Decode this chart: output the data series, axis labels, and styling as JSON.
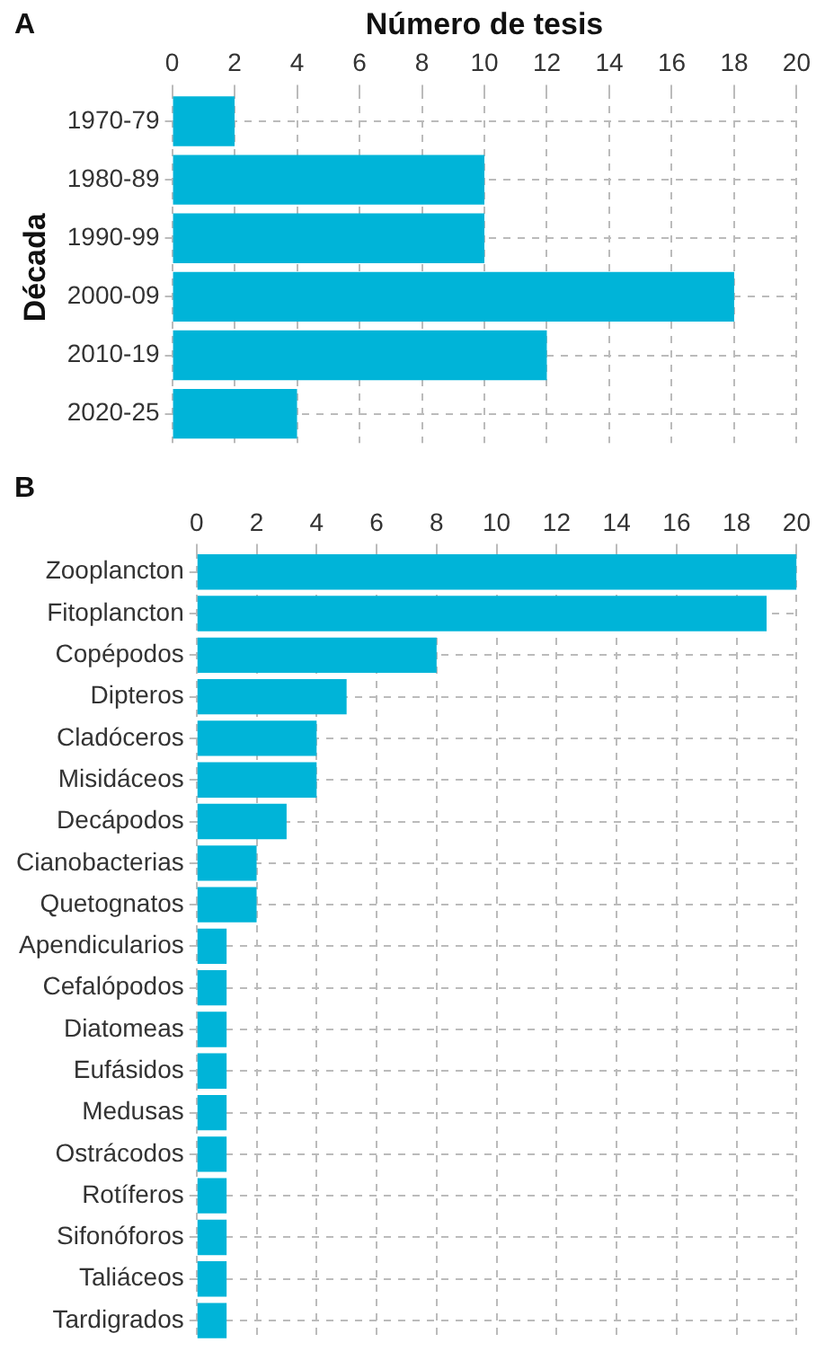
{
  "chart_data": [
    {
      "type": "bar",
      "orientation": "horizontal",
      "xlabel": "Número de tesis",
      "ylabel": "Década",
      "annotations": [
        "A"
      ],
      "categories": [
        "1970-79",
        "1980-89",
        "1990-99",
        "2000-09",
        "2010-19",
        "2020-25"
      ],
      "values": [
        2,
        10,
        10,
        18,
        12,
        4
      ],
      "color": "#00b4d8",
      "xlim": [
        0,
        20
      ],
      "xticks": [
        0,
        2,
        4,
        6,
        8,
        10,
        12,
        14,
        16,
        18,
        20
      ],
      "grid": true
    },
    {
      "type": "bar",
      "orientation": "horizontal",
      "annotations": [
        "B"
      ],
      "categories": [
        "Zooplancton",
        "Fitoplancton",
        "Copépodos",
        "Dipteros",
        "Cladóceros",
        "Misidáceos",
        "Decápodos",
        "Cianobacterias",
        "Quetognatos",
        "Apendicularios",
        "Cefalópodos",
        "Diatomeas",
        "Eufásidos",
        "Medusas",
        "Ostrácodos",
        "Rotíferos",
        "Sifonóforos",
        "Taliáceos",
        "Tardigrados"
      ],
      "values": [
        20,
        19,
        8,
        5,
        4,
        4,
        3,
        2,
        2,
        1,
        1,
        1,
        1,
        1,
        1,
        1,
        1,
        1,
        1
      ],
      "color": "#00b4d8",
      "xlim": [
        0,
        20
      ],
      "xticks": [
        0,
        2,
        4,
        6,
        8,
        10,
        12,
        14,
        16,
        18,
        20
      ],
      "grid": true
    }
  ]
}
